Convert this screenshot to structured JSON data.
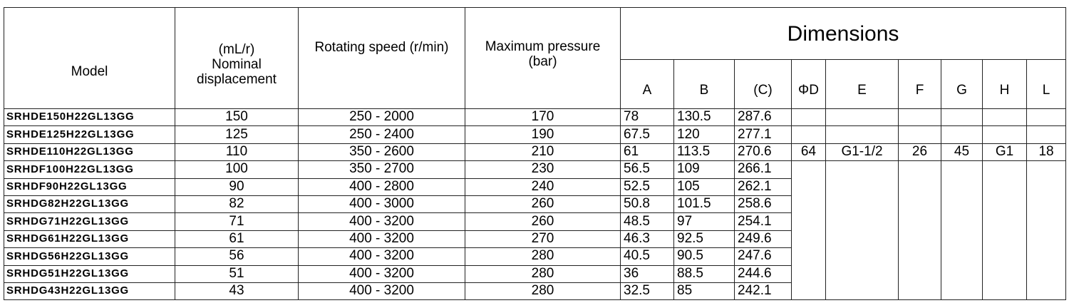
{
  "table": {
    "headers": {
      "model": "Model",
      "displacement_unit": "(mL/r)",
      "displacement": "Nominal displacement",
      "speed": "Rotating speed (r/min)",
      "pressure": "Maximum pressure (bar)",
      "dimensions": "Dimensions",
      "dims": [
        "A",
        "B",
        "(C)",
        "ΦD",
        "E",
        "F",
        "G",
        "H",
        "L"
      ]
    },
    "rows": [
      [
        "SRHDE150H22GL13GG",
        150,
        "250 - 2000",
        170,
        78,
        130.5,
        287.6
      ],
      [
        "SRHDE125H22GL13GG",
        125,
        "250 - 2400",
        190,
        67.5,
        120,
        277.1
      ],
      [
        "SRHDE110H22GL13GG",
        110,
        "350 - 2600",
        210,
        61,
        113.5,
        270.6
      ],
      [
        "SRHDF100H22GL13GG",
        100,
        "350 - 2700",
        230,
        56.5,
        109,
        266.1
      ],
      [
        "SRHDF90H22GL13GG",
        90,
        "400 - 2800",
        240,
        52.5,
        105,
        262.1
      ],
      [
        "SRHDG82H22GL13GG",
        82,
        "400 - 3000",
        260,
        50.8,
        101.5,
        258.6
      ],
      [
        "SRHDG71H22GL13GG",
        71,
        "400 - 3200",
        260,
        48.5,
        97,
        254.1
      ],
      [
        "SRHDG61H22GL13GG",
        61,
        "400 - 3200",
        270,
        46.3,
        92.5,
        249.6
      ],
      [
        "SRHDG56H22GL13GG",
        56,
        "400 - 3200",
        280,
        40.5,
        90.5,
        247.6
      ],
      [
        "SRHDG51H22GL13GG",
        51,
        "400 - 3200",
        280,
        36,
        88.5,
        244.6
      ],
      [
        "SRHDG43H22GL13GG",
        43,
        "400 - 3200",
        280,
        32.5,
        85,
        242.1
      ]
    ],
    "shared": [
      64,
      "G1-1/2",
      26,
      45,
      "G1",
      18
    ]
  }
}
